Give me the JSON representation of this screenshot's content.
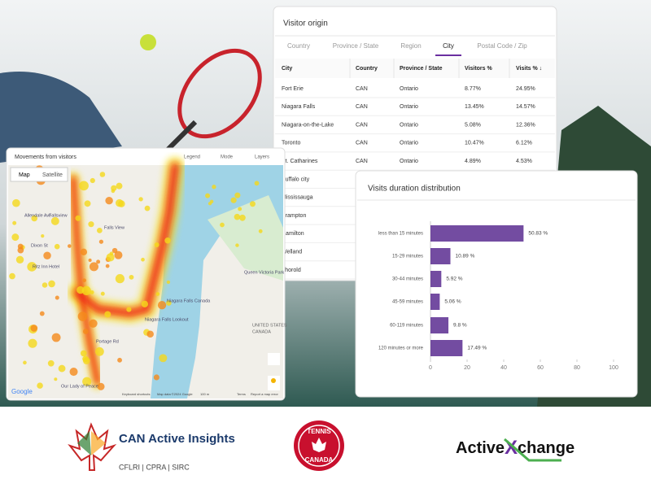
{
  "map_panel": {
    "title": "Movements from visitors",
    "controls": [
      "Legend",
      "Mode",
      "Layers"
    ],
    "map_types": [
      "Map",
      "Satellite"
    ],
    "labels": [
      "Fallsview",
      "Falls View",
      "Niagara Falls Lookout",
      "Niagara Falls Canada",
      "UNITED STATES",
      "CANADA",
      "Our Lady of Peace",
      "Ritz Inn Hotel",
      "Dixon St",
      "Allendale Ave",
      "Portage Rd",
      "Queen Victoria Park"
    ],
    "footer": [
      "Google",
      "Keyboard shortcuts",
      "Map data ©2024 Google",
      "100 m",
      "Terms",
      "Report a map error"
    ]
  },
  "visitor_origin": {
    "title": "Visitor origin",
    "tabs": [
      "Country",
      "Province / State",
      "Region",
      "City",
      "Postal Code / Zip"
    ],
    "active_tab": "City",
    "columns": [
      "City",
      "Country",
      "Province / State",
      "Visitors %",
      "Visits %  ↓"
    ],
    "rows": [
      [
        "Fort Erie",
        "CAN",
        "Ontario",
        "8.77%",
        "24.95%"
      ],
      [
        "Niagara Falls",
        "CAN",
        "Ontario",
        "13.45%",
        "14.57%"
      ],
      [
        "Niagara-on-the-Lake",
        "CAN",
        "Ontario",
        "5.08%",
        "12.36%"
      ],
      [
        "Toronto",
        "CAN",
        "Ontario",
        "10.47%",
        "6.12%"
      ],
      [
        "St. Catharines",
        "CAN",
        "Ontario",
        "4.89%",
        "4.53%"
      ],
      [
        "Buffalo city"
      ],
      [
        "Mississauga"
      ],
      [
        "Brampton"
      ],
      [
        "Hamilton"
      ],
      [
        "Welland"
      ],
      [
        "Thorold"
      ]
    ]
  },
  "duration_chart": {
    "type": "bar",
    "title": "Visits duration distribution",
    "categories": [
      "less than 15 minutes",
      "15-29 minutes",
      "30-44 minutes",
      "45-59 minutes",
      "60-119 minutes",
      "120 minutes or more"
    ],
    "values": [
      50.83,
      10.89,
      5.92,
      5.06,
      9.8,
      17.49
    ],
    "value_labels": [
      "50.83 %",
      "10.89 %",
      "5.92 %",
      "5.06 %",
      "9.8 %",
      "17.49 %"
    ],
    "color": "#5b2d90",
    "xlim": [
      0,
      100
    ],
    "xticks": [
      0,
      20,
      40,
      60,
      80,
      100
    ],
    "grid": false
  },
  "logos": {
    "can_active": {
      "name": "CAN Active Insights",
      "sub": "CFLRI | CPRA | SIRC"
    },
    "tennis_canada": {
      "top": "TENNIS",
      "bottom": "CANADA"
    },
    "activexchange": {
      "left": "Active",
      "x": "X",
      "right": "change"
    }
  }
}
